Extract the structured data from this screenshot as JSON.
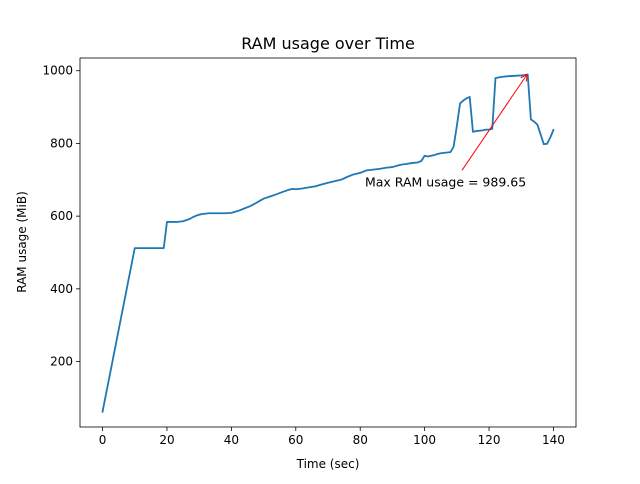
{
  "chart_data": {
    "type": "line",
    "title": "RAM usage over Time",
    "xlabel": "Time (sec)",
    "ylabel": "RAM usage (MiB)",
    "xlim": [
      -7,
      147
    ],
    "ylim": [
      20,
      1035
    ],
    "xticks": [
      0,
      20,
      40,
      60,
      80,
      100,
      120,
      140
    ],
    "yticks": [
      200,
      400,
      600,
      800,
      1000
    ],
    "grid": false,
    "legend": "none",
    "series": [
      {
        "color": "#1f77b4",
        "x": [
          0,
          10,
          11,
          18,
          19,
          20,
          21,
          22,
          23,
          24,
          25,
          26,
          27,
          28,
          29,
          30,
          31,
          32,
          33,
          34,
          35,
          36,
          38,
          40,
          42,
          44,
          46,
          48,
          50,
          52,
          54,
          56,
          58,
          59,
          60,
          61,
          62,
          64,
          66,
          68,
          70,
          72,
          74,
          76,
          78,
          80,
          82,
          84,
          86,
          88,
          90,
          92,
          93,
          94,
          96,
          98,
          99,
          100,
          101,
          102,
          103,
          104,
          105,
          106,
          108,
          109,
          110,
          111,
          112,
          113,
          114,
          115,
          116,
          118,
          119,
          120,
          121,
          122,
          124,
          126,
          128,
          130,
          131,
          132,
          133,
          134,
          135,
          136,
          137,
          138,
          139,
          140
        ],
        "y": [
          62,
          512,
          512,
          512,
          512,
          584,
          584,
          584,
          584,
          585,
          586,
          589,
          592,
          597,
          601,
          604,
          606,
          607,
          608,
          608,
          608,
          608,
          608,
          609,
          614,
          621,
          628,
          638,
          648,
          654,
          660,
          667,
          673,
          675,
          674,
          675,
          676,
          679,
          682,
          687,
          692,
          696,
          700,
          708,
          715,
          719,
          726,
          728,
          730,
          733,
          735,
          740,
          742,
          743,
          746,
          748,
          752,
          766,
          764,
          766,
          768,
          771,
          773,
          774,
          776,
          791,
          848,
          910,
          918,
          924,
          928,
          832,
          834,
          836,
          838,
          838,
          840,
          980,
          983,
          985,
          986,
          987,
          988,
          989.65,
          866,
          860,
          852,
          825,
          798,
          799,
          816,
          837
        ]
      }
    ],
    "annotations": [
      {
        "text": "Max RAM usage = 989.65",
        "color": "#ff0000",
        "point": [
          131.8,
          989.65
        ],
        "text_anchor": [
          111.6,
          726
        ]
      }
    ]
  }
}
